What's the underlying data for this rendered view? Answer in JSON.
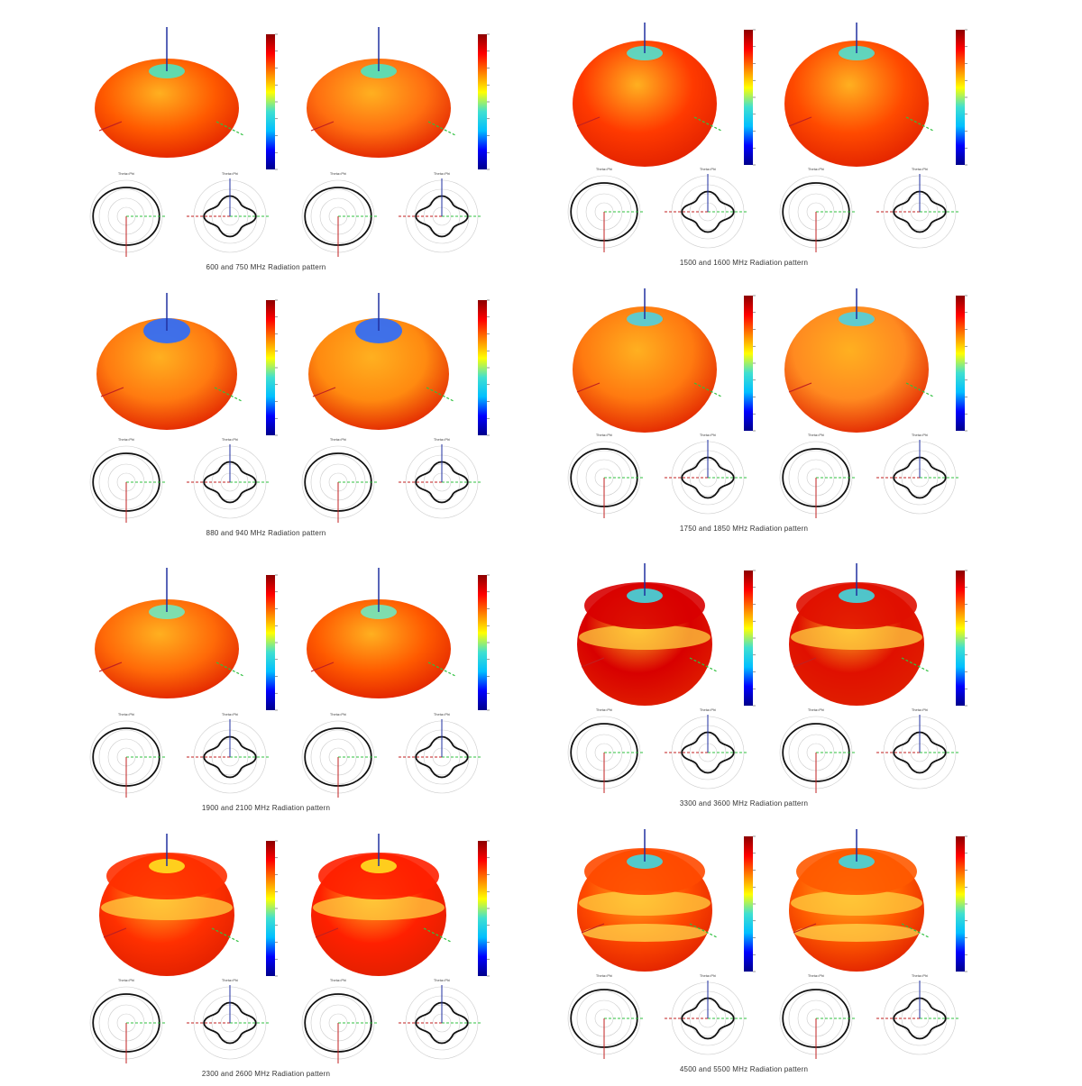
{
  "figure": {
    "panels": [
      {
        "caption": "600 and 750 MHz Radiation pattern",
        "shape": "ellipsoid",
        "colors": [
          "#ff5a00",
          "#ff6e10"
        ],
        "cap": "#4ee3c0"
      },
      {
        "caption": "1500 and 1600 MHz Radiation pattern",
        "shape": "sphere",
        "colors": [
          "#ff3a00",
          "#ff4a00"
        ],
        "cap": "#50e0d0"
      },
      {
        "caption": "880 and 940 MHz Radiation pattern",
        "shape": "dented",
        "colors": [
          "#ff7a10",
          "#ff8a10"
        ],
        "cap": "#2a6bff"
      },
      {
        "caption": "1750 and 1850 MHz Radiation pattern",
        "shape": "sphere",
        "colors": [
          "#ff7a10",
          "#ff8a20"
        ],
        "cap": "#4fd0e0"
      },
      {
        "caption": "1900 and 2100 MHz Radiation pattern",
        "shape": "ellipsoid",
        "colors": [
          "#ff6a08",
          "#ff5a00"
        ],
        "cap": "#70e8c0"
      },
      {
        "caption": "3300 and 3600 MHz Radiation pattern",
        "shape": "torus",
        "colors": [
          "#d80000",
          "#e01000"
        ],
        "cap": "#40d8e0"
      },
      {
        "caption": "2300 and 2600 MHz Radiation pattern",
        "shape": "banded",
        "colors": [
          "#ff3000",
          "#ff2000"
        ],
        "cap": "#ffe020"
      },
      {
        "caption": "4500 and 5500 MHz Radiation pattern",
        "shape": "multiband",
        "colors": [
          "#ff4a00",
          "#ff5a00"
        ],
        "cap": "#40d8e0"
      }
    ],
    "colorbar_colors": [
      "#8b0000",
      "#ff0000",
      "#ff8000",
      "#ffff00",
      "#40e0d0",
      "#00bfff",
      "#0000ff",
      "#00008b"
    ],
    "polar_title": "Theta=Phi"
  }
}
